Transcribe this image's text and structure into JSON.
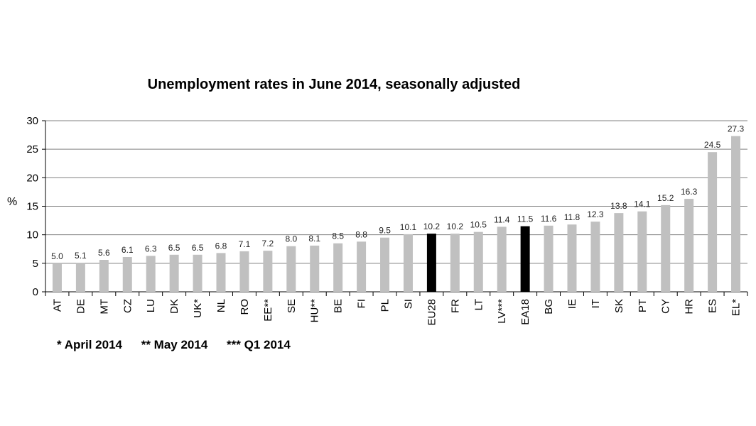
{
  "chart_data": {
    "type": "bar",
    "title": "Unemployment rates in June 2014, seasonally adjusted",
    "ylabel": "%",
    "xlabel": "",
    "ylim": [
      0,
      30
    ],
    "yticks": [
      0,
      5,
      10,
      15,
      20,
      25,
      30
    ],
    "grid": true,
    "categories": [
      "AT",
      "DE",
      "MT",
      "CZ",
      "LU",
      "DK",
      "UK*",
      "NL",
      "RO",
      "EE**",
      "SE",
      "HU**",
      "BE",
      "FI",
      "PL",
      "SI",
      "EU28",
      "FR",
      "LT",
      "LV***",
      "EA18",
      "BG",
      "IE",
      "IT",
      "SK",
      "PT",
      "CY",
      "HR",
      "ES",
      "EL*"
    ],
    "values": [
      5.0,
      5.1,
      5.6,
      6.1,
      6.3,
      6.5,
      6.5,
      6.8,
      7.1,
      7.2,
      8.0,
      8.1,
      8.5,
      8.8,
      9.5,
      10.1,
      10.2,
      10.2,
      10.5,
      11.4,
      11.5,
      11.6,
      11.8,
      12.3,
      13.8,
      14.1,
      15.2,
      16.3,
      24.5,
      27.3
    ],
    "value_labels": [
      "5.0",
      "5.1",
      "5.6",
      "6.1",
      "6.3",
      "6.5",
      "6.5",
      "6.8",
      "7.1",
      "7.2",
      "8.0",
      "8.1",
      "8.5",
      "8.8",
      "9.5",
      "10.1",
      "10.2",
      "10.2",
      "10.5",
      "11.4",
      "11.5",
      "11.6",
      "11.8",
      "12.3",
      "13.8",
      "14.1",
      "15.2",
      "16.3",
      "24.5",
      "27.3"
    ],
    "highlighted": [
      "EU28",
      "EA18"
    ],
    "colors": {
      "bar": "#c0c0c0",
      "highlight": "#000000",
      "grid": "#808080"
    }
  },
  "footnotes": [
    "* April 2014",
    "** May 2014",
    "*** Q1 2014"
  ]
}
